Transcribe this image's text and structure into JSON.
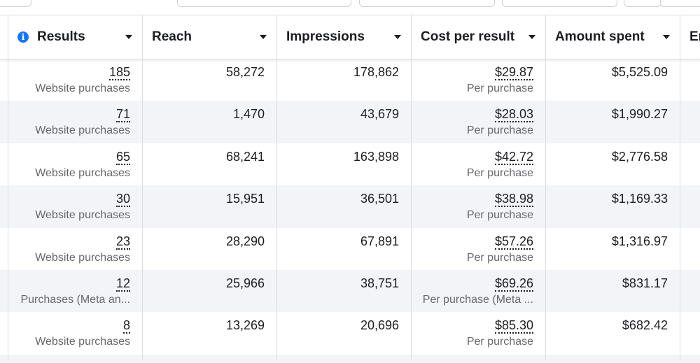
{
  "columns": {
    "results": "Results",
    "reach": "Reach",
    "impressions": "Impressions",
    "cost_per_result": "Cost per result",
    "amount_spent": "Amount spent",
    "next_partial": "Er"
  },
  "rows": [
    {
      "results": "185",
      "results_type": "Website purchases",
      "reach": "58,272",
      "impressions": "178,862",
      "cost": "$29.87",
      "cost_type": "Per purchase",
      "spent": "$5,525.09"
    },
    {
      "results": "71",
      "results_type": "Website purchases",
      "reach": "1,470",
      "impressions": "43,679",
      "cost": "$28.03",
      "cost_type": "Per purchase",
      "spent": "$1,990.27"
    },
    {
      "results": "65",
      "results_type": "Website purchases",
      "reach": "68,241",
      "impressions": "163,898",
      "cost": "$42.72",
      "cost_type": "Per purchase",
      "spent": "$2,776.58"
    },
    {
      "results": "30",
      "results_type": "Website purchases",
      "reach": "15,951",
      "impressions": "36,501",
      "cost": "$38.98",
      "cost_type": "Per purchase",
      "spent": "$1,169.33"
    },
    {
      "results": "23",
      "results_type": "Website purchases",
      "reach": "28,290",
      "impressions": "67,891",
      "cost": "$57.26",
      "cost_type": "Per purchase",
      "spent": "$1,316.97"
    },
    {
      "results": "12",
      "results_type": "Purchases (Meta an...",
      "reach": "25,966",
      "impressions": "38,751",
      "cost": "$69.26",
      "cost_type": "Per purchase (Meta ...",
      "spent": "$831.17"
    },
    {
      "results": "8",
      "results_type": "Website purchases",
      "reach": "13,269",
      "impressions": "20,696",
      "cost": "$85.30",
      "cost_type": "Per purchase",
      "spent": "$682.42"
    }
  ],
  "icons": {
    "info": "info-icon",
    "caret": "caret-down-icon"
  },
  "colors": {
    "accent": "#1877f2",
    "row_alt": "#f2f4f7",
    "border": "#dadde1",
    "secondary_text": "#65676b"
  }
}
